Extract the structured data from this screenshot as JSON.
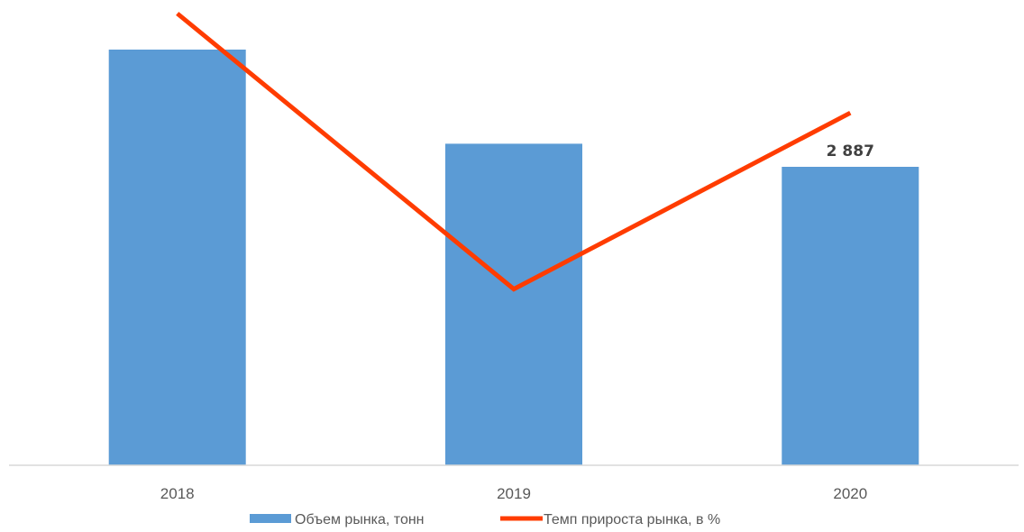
{
  "chart_data": {
    "type": "bar",
    "categories": [
      "2018",
      "2019",
      "2020"
    ],
    "series": [
      {
        "name": "Объем рынка, тонн",
        "type": "bar",
        "color": "#5b9bd5",
        "values": [
          4020,
          3110,
          2887
        ],
        "data_labels": [
          "",
          "",
          "2 887"
        ]
      },
      {
        "name": "Темп прироста рынка, в %",
        "type": "line",
        "color": "#ff3c00",
        "values": [
          50,
          -11,
          28
        ]
      }
    ],
    "ylim": [
      0,
      4500
    ],
    "y2lim": [
      -50,
      53
    ],
    "grid": false,
    "legend": "bottom"
  }
}
